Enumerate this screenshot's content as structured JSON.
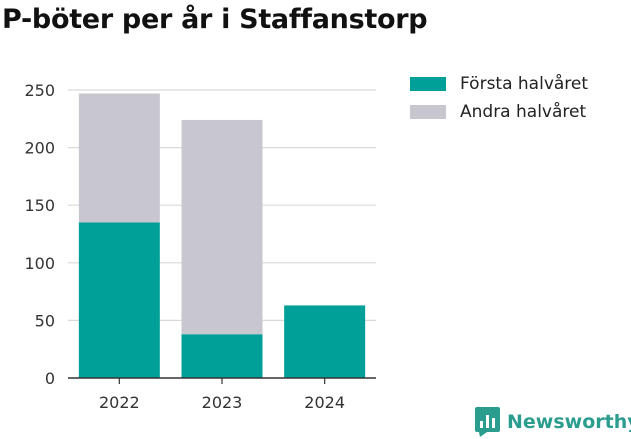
{
  "chart_data": {
    "type": "bar",
    "stacked": true,
    "title": "P-böter per år i Staffanstorp",
    "xlabel": "",
    "ylabel": "",
    "categories": [
      "2022",
      "2023",
      "2024"
    ],
    "series": [
      {
        "name": "Första halvåret",
        "values": [
          135,
          38,
          63
        ],
        "color": "#00a098"
      },
      {
        "name": "Andra halvåret",
        "values": [
          112,
          186,
          0
        ],
        "color": "#c8c7d0"
      }
    ],
    "ylim": [
      0,
      250
    ],
    "yticks": [
      0,
      50,
      100,
      150,
      200,
      250
    ],
    "grid": true,
    "legend_position": "top-right"
  },
  "brand": {
    "name": "Newsworthy",
    "icon": "newsworthy-logo-icon",
    "color": "#2a9d8f"
  }
}
